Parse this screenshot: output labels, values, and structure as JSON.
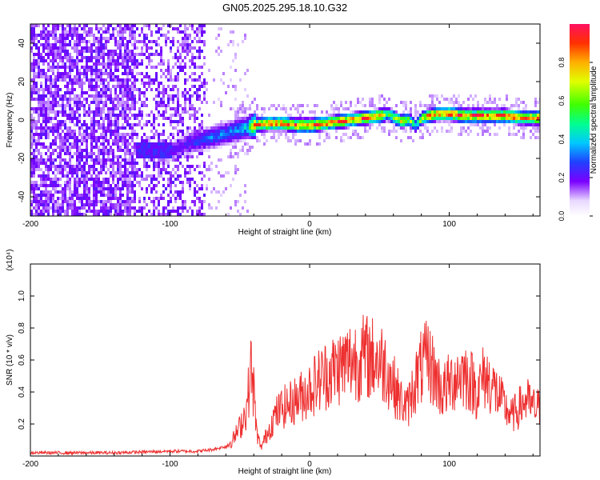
{
  "chart_data": [
    {
      "type": "heatmap",
      "title": "GN05.2025.295.18.10.G32",
      "xlabel": "Height of straight line (km)",
      "ylabel": "Frequency (Hz)",
      "xlim": [
        -200,
        165
      ],
      "ylim": [
        -50,
        50
      ],
      "xticks": [
        "-200",
        "-100",
        "0",
        "100"
      ],
      "yticks": [
        "-40",
        "-20",
        "0",
        "20",
        "40"
      ],
      "colorbar": {
        "label": "Normalized spectral amplitude",
        "range": [
          0.0,
          1.0
        ],
        "ticks": [
          "0.0",
          "0.2",
          "0.4",
          "0.6",
          "0.8"
        ]
      },
      "ridge": {
        "description_height_km": [
          -110,
          -100,
          -90,
          -80,
          -70,
          -60,
          -50,
          -45,
          -40,
          -30,
          -20,
          -10,
          0,
          10,
          20,
          30,
          40,
          50,
          55,
          60,
          65,
          70,
          75,
          80,
          85,
          90,
          100,
          110,
          120,
          130,
          140,
          150,
          165
        ],
        "frequency_hz": [
          -18,
          -16,
          -12,
          -10,
          -8,
          -6,
          -4,
          -3,
          -2,
          -1,
          -1,
          -2,
          -2,
          -1,
          0,
          1,
          2,
          3,
          4,
          2,
          0,
          1,
          -2,
          2,
          3,
          4,
          4,
          3,
          3,
          3,
          3,
          2,
          2
        ],
        "amplitude": [
          0.2,
          0.2,
          0.25,
          0.3,
          0.35,
          0.35,
          0.4,
          0.45,
          0.9,
          0.95,
          0.95,
          0.9,
          0.95,
          0.95,
          0.95,
          0.9,
          0.95,
          0.9,
          0.6,
          0.7,
          0.8,
          0.7,
          0.5,
          0.8,
          0.95,
          0.9,
          0.95,
          0.9,
          0.95,
          0.9,
          0.95,
          0.95,
          0.9
        ]
      },
      "grid": false
    },
    {
      "type": "line",
      "xlabel": "Height of straight line (km)",
      "ylabel": "SNR (10 * v/v)",
      "yscale_note": "(x10⁴)",
      "xlim": [
        -200,
        165
      ],
      "ylim": [
        0,
        1.2
      ],
      "xticks": [
        "-200",
        "-100",
        "0",
        "100"
      ],
      "yticks": [
        "0.2",
        "0.4",
        "0.6",
        "0.8",
        "1.0"
      ],
      "series": [
        {
          "color": "#ee3030",
          "x": [
            -200,
            -180,
            -160,
            -140,
            -120,
            -100,
            -80,
            -70,
            -60,
            -55,
            -50,
            -45,
            -42,
            -40,
            -38,
            -35,
            -30,
            -25,
            -20,
            -15,
            -10,
            -5,
            0,
            10,
            20,
            30,
            40,
            50,
            55,
            60,
            65,
            70,
            75,
            80,
            85,
            90,
            95,
            100,
            105,
            110,
            115,
            120,
            125,
            130,
            135,
            140,
            145,
            150,
            155,
            160,
            165
          ],
          "y": [
            0.02,
            0.02,
            0.02,
            0.02,
            0.025,
            0.03,
            0.03,
            0.04,
            0.06,
            0.1,
            0.18,
            0.3,
            0.55,
            0.4,
            0.15,
            0.05,
            0.15,
            0.25,
            0.3,
            0.32,
            0.35,
            0.38,
            0.42,
            0.5,
            0.55,
            0.6,
            0.62,
            0.6,
            0.55,
            0.45,
            0.35,
            0.3,
            0.45,
            0.55,
            0.6,
            0.5,
            0.4,
            0.45,
            0.5,
            0.52,
            0.48,
            0.4,
            0.5,
            0.45,
            0.38,
            0.3,
            0.25,
            0.3,
            0.35,
            0.3,
            0.3
          ]
        }
      ],
      "grid": false
    }
  ]
}
